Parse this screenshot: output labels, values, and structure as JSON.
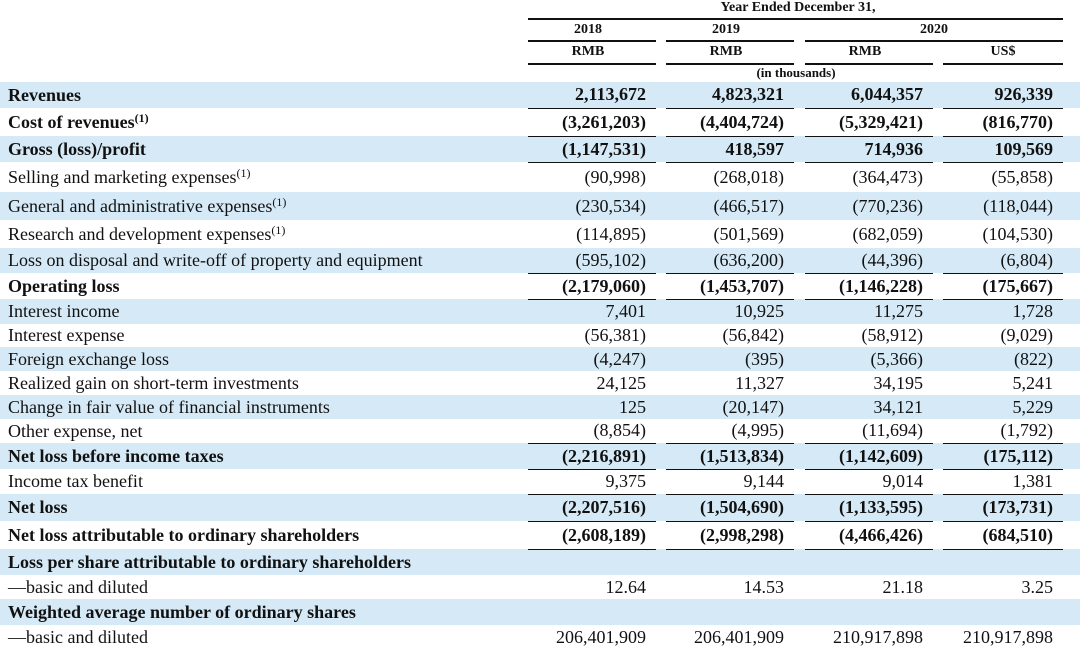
{
  "header": {
    "period_title": "Year Ended December 31,",
    "years": [
      "2018",
      "2019",
      "2020"
    ],
    "currencies": [
      "RMB",
      "RMB",
      "RMB",
      "US$"
    ],
    "unit_note": "(in thousands)"
  },
  "rows": [
    {
      "label": "Revenues",
      "sup": "",
      "values": [
        "2,113,672",
        "4,823,321",
        "6,044,357",
        "926,339"
      ]
    },
    {
      "label": "Cost of revenues",
      "sup": "(1)",
      "values": [
        "(3,261,203)",
        "(4,404,724)",
        "(5,329,421)",
        "(816,770)"
      ]
    },
    {
      "label": "Gross (loss)/profit",
      "sup": "",
      "values": [
        "(1,147,531)",
        "418,597",
        "714,936",
        "109,569"
      ]
    },
    {
      "label": "Selling and marketing expenses",
      "sup": "(1)",
      "values": [
        "(90,998)",
        "(268,018)",
        "(364,473)",
        "(55,858)"
      ]
    },
    {
      "label": "General and administrative expenses",
      "sup": "(1)",
      "values": [
        "(230,534)",
        "(466,517)",
        "(770,236)",
        "(118,044)"
      ]
    },
    {
      "label": "Research and development expenses",
      "sup": "(1)",
      "values": [
        "(114,895)",
        "(501,569)",
        "(682,059)",
        "(104,530)"
      ]
    },
    {
      "label": "Loss on disposal and write-off of property and equipment",
      "sup": "",
      "values": [
        "(595,102)",
        "(636,200)",
        "(44,396)",
        "(6,804)"
      ]
    },
    {
      "label": "Operating loss",
      "sup": "",
      "values": [
        "(2,179,060)",
        "(1,453,707)",
        "(1,146,228)",
        "(175,667)"
      ]
    },
    {
      "label": "Interest income",
      "sup": "",
      "values": [
        "7,401",
        "10,925",
        "11,275",
        "1,728"
      ]
    },
    {
      "label": "Interest expense",
      "sup": "",
      "values": [
        "(56,381)",
        "(56,842)",
        "(58,912)",
        "(9,029)"
      ]
    },
    {
      "label": "Foreign exchange loss",
      "sup": "",
      "values": [
        "(4,247)",
        "(395)",
        "(5,366)",
        "(822)"
      ]
    },
    {
      "label": "Realized gain on short-term investments",
      "sup": "",
      "values": [
        "24,125",
        "11,327",
        "34,195",
        "5,241"
      ]
    },
    {
      "label": "Change in fair value of financial instruments",
      "sup": "",
      "values": [
        "125",
        "(20,147)",
        "34,121",
        "5,229"
      ]
    },
    {
      "label": "Other expense, net",
      "sup": "",
      "values": [
        "(8,854)",
        "(4,995)",
        "(11,694)",
        "(1,792)"
      ]
    },
    {
      "label": "Net loss before income taxes",
      "sup": "",
      "values": [
        "(2,216,891)",
        "(1,513,834)",
        "(1,142,609)",
        "(175,112)"
      ]
    },
    {
      "label": "Income tax benefit",
      "sup": "",
      "values": [
        "9,375",
        "9,144",
        "9,014",
        "1,381"
      ]
    },
    {
      "label": "Net loss",
      "sup": "",
      "values": [
        "(2,207,516)",
        "(1,504,690)",
        "(1,133,595)",
        "(173,731)"
      ]
    },
    {
      "label": "Net loss attributable to ordinary shareholders",
      "sup": "",
      "values": [
        "(2,608,189)",
        "(2,998,298)",
        "(4,466,426)",
        "(684,510)"
      ]
    },
    {
      "label": "Loss per share attributable to ordinary shareholders",
      "sup": "",
      "values": [
        "",
        "",
        "",
        ""
      ]
    },
    {
      "label": "—basic and diluted",
      "sup": "",
      "values": [
        "12.64",
        "14.53",
        "21.18",
        "3.25"
      ]
    },
    {
      "label": "Weighted average number of ordinary shares",
      "sup": "",
      "values": [
        "",
        "",
        "",
        ""
      ]
    },
    {
      "label": "—basic and diluted",
      "sup": "",
      "values": [
        "206,401,909",
        "206,401,909",
        "210,917,898",
        "210,917,898"
      ]
    }
  ]
}
